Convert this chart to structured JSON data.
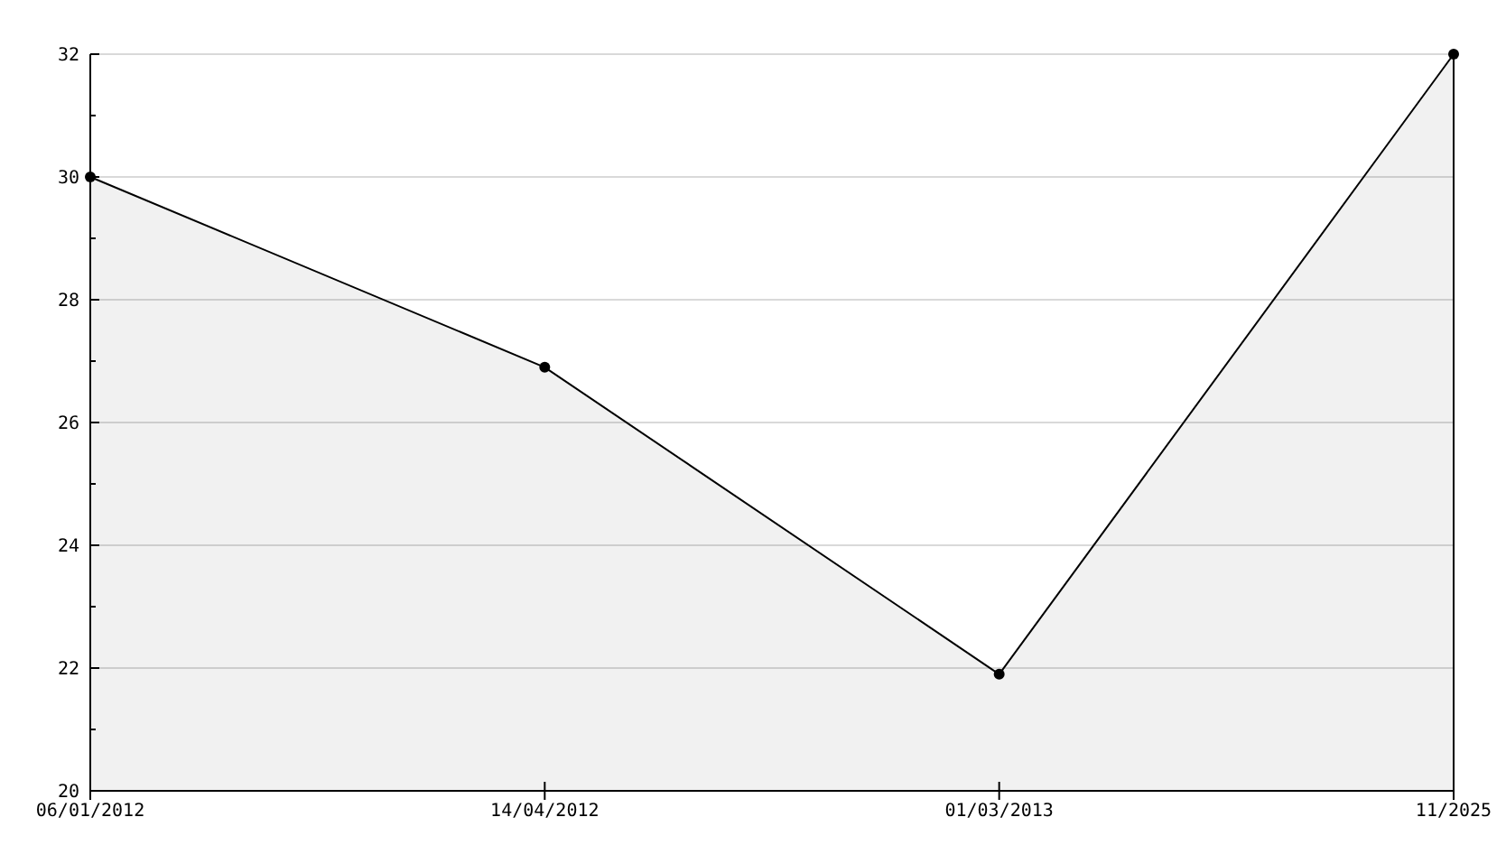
{
  "chart_data": {
    "type": "area",
    "categories": [
      "06/01/2012",
      "14/04/2012",
      "01/03/2013",
      "11/2025"
    ],
    "series": [
      {
        "color": "#000000",
        "values": [
          30,
          26.9,
          21.9,
          32
        ]
      }
    ],
    "ylim": [
      20,
      32
    ],
    "yticks": [
      20,
      {
        "value": 21,
        "label": null
      },
      22,
      {
        "value": 23,
        "label": null
      },
      24,
      {
        "value": 25,
        "label": null
      },
      26,
      {
        "value": 27,
        "label": null
      },
      28,
      {
        "value": 29,
        "label": null
      },
      30,
      {
        "value": 31,
        "label": null
      },
      32
    ],
    "grid": "y",
    "marker": "circle"
  }
}
